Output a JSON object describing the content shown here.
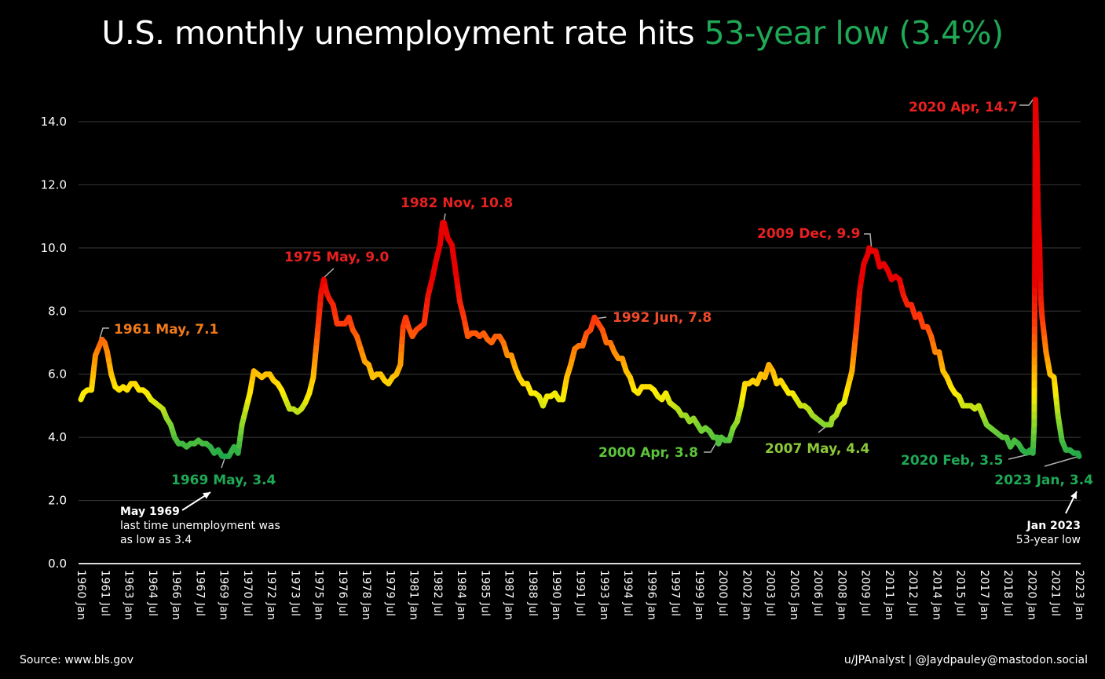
{
  "title": {
    "prefix": "U.S. monthly unemployment rate hits ",
    "highlight": "53-year low (3.4%)",
    "highlight_color": "#1fa855"
  },
  "footer": {
    "source": "Source: www.bls.gov",
    "credit": "u/JPAnalyst | @Jaydpauley@mastodon.social"
  },
  "notes": [
    {
      "heading": "May 1969",
      "lines": [
        "last time unemployment was",
        "as low as 3.4"
      ]
    },
    {
      "heading": "Jan 2023",
      "lines": [
        "53-year low"
      ]
    }
  ],
  "chart_data": {
    "type": "line",
    "title": "U.S. monthly unemployment rate hits 53-year low (3.4%)",
    "xlabel": "",
    "ylabel": "",
    "ylim": [
      0,
      14
    ],
    "grid": true,
    "y_ticks": [
      "0.0",
      "2.0",
      "4.0",
      "6.0",
      "8.0",
      "10.0",
      "12.0",
      "14.0"
    ],
    "x_tick_labels": [
      "1960 Jan",
      "1961 Jul",
      "1963 Jan",
      "1964 Jul",
      "1966 Jan",
      "1967 Jul",
      "1969 Jan",
      "1970 Jul",
      "1972 Jan",
      "1973 Jul",
      "1975 Jan",
      "1976 Jul",
      "1978 Jan",
      "1979 Jul",
      "1981 Jan",
      "1982 Jul",
      "1984 Jan",
      "1985 Jul",
      "1987 Jan",
      "1988 Jul",
      "1990 Jan",
      "1991 Jul",
      "1993 Jan",
      "1994 Jul",
      "1996 Jan",
      "1997 Jul",
      "1999 Jan",
      "2000 Jul",
      "2002 Jan",
      "2003 Jul",
      "2005 Jan",
      "2006 Jul",
      "2008 Jan",
      "2009 Jul",
      "2011 Jan",
      "2012 Jul",
      "2014 Jan",
      "2015 Jul",
      "2017 Jan",
      "2018 Jul",
      "2020 Jan",
      "2021 Jul",
      "2023 Jan"
    ],
    "color_scale": {
      "low": "#1fa84a",
      "mid": "#ffee00",
      "high": "#e80000"
    },
    "series": [
      {
        "points": [
          [
            "1960-01",
            5.2
          ],
          [
            "1960-03",
            5.4
          ],
          [
            "1960-06",
            5.5
          ],
          [
            "1960-09",
            5.5
          ],
          [
            "1960-12",
            6.6
          ],
          [
            "1961-03",
            6.9
          ],
          [
            "1961-05",
            7.1
          ],
          [
            "1961-07",
            7.0
          ],
          [
            "1961-09",
            6.7
          ],
          [
            "1961-12",
            6.0
          ],
          [
            "1962-03",
            5.6
          ],
          [
            "1962-06",
            5.5
          ],
          [
            "1962-09",
            5.6
          ],
          [
            "1962-12",
            5.5
          ],
          [
            "1963-03",
            5.7
          ],
          [
            "1963-06",
            5.7
          ],
          [
            "1963-09",
            5.5
          ],
          [
            "1963-12",
            5.5
          ],
          [
            "1964-03",
            5.4
          ],
          [
            "1964-06",
            5.2
          ],
          [
            "1964-09",
            5.1
          ],
          [
            "1964-12",
            5.0
          ],
          [
            "1965-03",
            4.9
          ],
          [
            "1965-06",
            4.6
          ],
          [
            "1965-09",
            4.4
          ],
          [
            "1965-12",
            4.0
          ],
          [
            "1966-03",
            3.8
          ],
          [
            "1966-06",
            3.8
          ],
          [
            "1966-09",
            3.7
          ],
          [
            "1966-12",
            3.8
          ],
          [
            "1967-03",
            3.8
          ],
          [
            "1967-06",
            3.9
          ],
          [
            "1967-09",
            3.8
          ],
          [
            "1967-12",
            3.8
          ],
          [
            "1968-03",
            3.7
          ],
          [
            "1968-06",
            3.5
          ],
          [
            "1968-09",
            3.6
          ],
          [
            "1968-12",
            3.4
          ],
          [
            "1969-03",
            3.4
          ],
          [
            "1969-05",
            3.4
          ],
          [
            "1969-09",
            3.7
          ],
          [
            "1969-12",
            3.5
          ],
          [
            "1970-03",
            4.4
          ],
          [
            "1970-06",
            4.9
          ],
          [
            "1970-09",
            5.4
          ],
          [
            "1970-12",
            6.1
          ],
          [
            "1971-03",
            6.0
          ],
          [
            "1971-06",
            5.9
          ],
          [
            "1971-09",
            6.0
          ],
          [
            "1971-12",
            6.0
          ],
          [
            "1972-03",
            5.8
          ],
          [
            "1972-06",
            5.7
          ],
          [
            "1972-09",
            5.5
          ],
          [
            "1972-12",
            5.2
          ],
          [
            "1973-03",
            4.9
          ],
          [
            "1973-06",
            4.9
          ],
          [
            "1973-09",
            4.8
          ],
          [
            "1973-12",
            4.9
          ],
          [
            "1974-03",
            5.1
          ],
          [
            "1974-06",
            5.4
          ],
          [
            "1974-09",
            5.9
          ],
          [
            "1974-12",
            7.2
          ],
          [
            "1975-03",
            8.6
          ],
          [
            "1975-05",
            9.0
          ],
          [
            "1975-07",
            8.6
          ],
          [
            "1975-09",
            8.4
          ],
          [
            "1975-12",
            8.2
          ],
          [
            "1976-03",
            7.6
          ],
          [
            "1976-06",
            7.6
          ],
          [
            "1976-09",
            7.6
          ],
          [
            "1976-12",
            7.8
          ],
          [
            "1977-03",
            7.4
          ],
          [
            "1977-06",
            7.2
          ],
          [
            "1977-09",
            6.8
          ],
          [
            "1977-12",
            6.4
          ],
          [
            "1978-03",
            6.3
          ],
          [
            "1978-06",
            5.9
          ],
          [
            "1978-09",
            6.0
          ],
          [
            "1978-12",
            6.0
          ],
          [
            "1979-03",
            5.8
          ],
          [
            "1979-06",
            5.7
          ],
          [
            "1979-09",
            5.9
          ],
          [
            "1979-12",
            6.0
          ],
          [
            "1980-03",
            6.3
          ],
          [
            "1980-05",
            7.5
          ],
          [
            "1980-07",
            7.8
          ],
          [
            "1980-09",
            7.5
          ],
          [
            "1980-12",
            7.2
          ],
          [
            "1981-03",
            7.4
          ],
          [
            "1981-06",
            7.5
          ],
          [
            "1981-09",
            7.6
          ],
          [
            "1981-12",
            8.5
          ],
          [
            "1982-03",
            9.0
          ],
          [
            "1982-06",
            9.6
          ],
          [
            "1982-09",
            10.1
          ],
          [
            "1982-11",
            10.8
          ],
          [
            "1982-12",
            10.8
          ],
          [
            "1983-03",
            10.3
          ],
          [
            "1983-06",
            10.1
          ],
          [
            "1983-09",
            9.2
          ],
          [
            "1983-12",
            8.3
          ],
          [
            "1984-03",
            7.8
          ],
          [
            "1984-06",
            7.2
          ],
          [
            "1984-09",
            7.3
          ],
          [
            "1984-12",
            7.3
          ],
          [
            "1985-03",
            7.2
          ],
          [
            "1985-06",
            7.3
          ],
          [
            "1985-09",
            7.1
          ],
          [
            "1985-12",
            7.0
          ],
          [
            "1986-03",
            7.2
          ],
          [
            "1986-06",
            7.2
          ],
          [
            "1986-09",
            7.0
          ],
          [
            "1986-12",
            6.6
          ],
          [
            "1987-03",
            6.6
          ],
          [
            "1987-06",
            6.2
          ],
          [
            "1987-09",
            5.9
          ],
          [
            "1987-12",
            5.7
          ],
          [
            "1988-03",
            5.7
          ],
          [
            "1988-06",
            5.4
          ],
          [
            "1988-09",
            5.4
          ],
          [
            "1988-12",
            5.3
          ],
          [
            "1989-03",
            5.0
          ],
          [
            "1989-06",
            5.3
          ],
          [
            "1989-09",
            5.3
          ],
          [
            "1989-12",
            5.4
          ],
          [
            "1990-03",
            5.2
          ],
          [
            "1990-06",
            5.2
          ],
          [
            "1990-09",
            5.9
          ],
          [
            "1990-12",
            6.3
          ],
          [
            "1991-03",
            6.8
          ],
          [
            "1991-06",
            6.9
          ],
          [
            "1991-09",
            6.9
          ],
          [
            "1991-12",
            7.3
          ],
          [
            "1992-03",
            7.4
          ],
          [
            "1992-06",
            7.8
          ],
          [
            "1992-09",
            7.6
          ],
          [
            "1992-12",
            7.4
          ],
          [
            "1993-03",
            7.0
          ],
          [
            "1993-06",
            7.0
          ],
          [
            "1993-09",
            6.7
          ],
          [
            "1993-12",
            6.5
          ],
          [
            "1994-03",
            6.5
          ],
          [
            "1994-06",
            6.1
          ],
          [
            "1994-09",
            5.9
          ],
          [
            "1994-12",
            5.5
          ],
          [
            "1995-03",
            5.4
          ],
          [
            "1995-06",
            5.6
          ],
          [
            "1995-09",
            5.6
          ],
          [
            "1995-12",
            5.6
          ],
          [
            "1996-03",
            5.5
          ],
          [
            "1996-06",
            5.3
          ],
          [
            "1996-09",
            5.2
          ],
          [
            "1996-12",
            5.4
          ],
          [
            "1997-03",
            5.1
          ],
          [
            "1997-06",
            5.0
          ],
          [
            "1997-09",
            4.9
          ],
          [
            "1997-12",
            4.7
          ],
          [
            "1998-03",
            4.7
          ],
          [
            "1998-06",
            4.5
          ],
          [
            "1998-09",
            4.6
          ],
          [
            "1998-12",
            4.4
          ],
          [
            "1999-03",
            4.2
          ],
          [
            "1999-06",
            4.3
          ],
          [
            "1999-09",
            4.2
          ],
          [
            "1999-12",
            4.0
          ],
          [
            "2000-03",
            4.0
          ],
          [
            "2000-04",
            3.8
          ],
          [
            "2000-06",
            4.0
          ],
          [
            "2000-09",
            3.9
          ],
          [
            "2000-12",
            3.9
          ],
          [
            "2001-03",
            4.3
          ],
          [
            "2001-06",
            4.5
          ],
          [
            "2001-09",
            5.0
          ],
          [
            "2001-12",
            5.7
          ],
          [
            "2002-03",
            5.7
          ],
          [
            "2002-06",
            5.8
          ],
          [
            "2002-09",
            5.7
          ],
          [
            "2002-12",
            6.0
          ],
          [
            "2003-03",
            5.9
          ],
          [
            "2003-06",
            6.3
          ],
          [
            "2003-09",
            6.1
          ],
          [
            "2003-12",
            5.7
          ],
          [
            "2004-03",
            5.8
          ],
          [
            "2004-06",
            5.6
          ],
          [
            "2004-09",
            5.4
          ],
          [
            "2004-12",
            5.4
          ],
          [
            "2005-03",
            5.2
          ],
          [
            "2005-06",
            5.0
          ],
          [
            "2005-09",
            5.0
          ],
          [
            "2005-12",
            4.9
          ],
          [
            "2006-03",
            4.7
          ],
          [
            "2006-06",
            4.6
          ],
          [
            "2006-09",
            4.5
          ],
          [
            "2006-12",
            4.4
          ],
          [
            "2007-03",
            4.4
          ],
          [
            "2007-05",
            4.4
          ],
          [
            "2007-06",
            4.6
          ],
          [
            "2007-09",
            4.7
          ],
          [
            "2007-12",
            5.0
          ],
          [
            "2008-03",
            5.1
          ],
          [
            "2008-06",
            5.6
          ],
          [
            "2008-09",
            6.1
          ],
          [
            "2008-12",
            7.3
          ],
          [
            "2009-03",
            8.7
          ],
          [
            "2009-06",
            9.5
          ],
          [
            "2009-09",
            9.8
          ],
          [
            "2009-10",
            10.0
          ],
          [
            "2009-12",
            9.9
          ],
          [
            "2010-03",
            9.9
          ],
          [
            "2010-06",
            9.4
          ],
          [
            "2010-09",
            9.5
          ],
          [
            "2010-12",
            9.3
          ],
          [
            "2011-03",
            9.0
          ],
          [
            "2011-06",
            9.1
          ],
          [
            "2011-09",
            9.0
          ],
          [
            "2011-12",
            8.5
          ],
          [
            "2012-03",
            8.2
          ],
          [
            "2012-06",
            8.2
          ],
          [
            "2012-09",
            7.8
          ],
          [
            "2012-12",
            7.9
          ],
          [
            "2013-03",
            7.5
          ],
          [
            "2013-06",
            7.5
          ],
          [
            "2013-09",
            7.2
          ],
          [
            "2013-12",
            6.7
          ],
          [
            "2014-03",
            6.7
          ],
          [
            "2014-06",
            6.1
          ],
          [
            "2014-09",
            5.9
          ],
          [
            "2014-12",
            5.6
          ],
          [
            "2015-03",
            5.4
          ],
          [
            "2015-06",
            5.3
          ],
          [
            "2015-09",
            5.0
          ],
          [
            "2015-12",
            5.0
          ],
          [
            "2016-03",
            5.0
          ],
          [
            "2016-06",
            4.9
          ],
          [
            "2016-09",
            5.0
          ],
          [
            "2016-12",
            4.7
          ],
          [
            "2017-03",
            4.4
          ],
          [
            "2017-06",
            4.3
          ],
          [
            "2017-09",
            4.2
          ],
          [
            "2017-12",
            4.1
          ],
          [
            "2018-03",
            4.0
          ],
          [
            "2018-06",
            4.0
          ],
          [
            "2018-09",
            3.7
          ],
          [
            "2018-12",
            3.9
          ],
          [
            "2019-03",
            3.8
          ],
          [
            "2019-06",
            3.6
          ],
          [
            "2019-09",
            3.5
          ],
          [
            "2019-12",
            3.6
          ],
          [
            "2020-02",
            3.5
          ],
          [
            "2020-03",
            4.4
          ],
          [
            "2020-04",
            14.7
          ],
          [
            "2020-05",
            13.2
          ],
          [
            "2020-06",
            11.0
          ],
          [
            "2020-07",
            10.2
          ],
          [
            "2020-08",
            8.4
          ],
          [
            "2020-09",
            7.8
          ],
          [
            "2020-12",
            6.7
          ],
          [
            "2021-03",
            6.0
          ],
          [
            "2021-06",
            5.9
          ],
          [
            "2021-09",
            4.7
          ],
          [
            "2021-12",
            3.9
          ],
          [
            "2022-03",
            3.6
          ],
          [
            "2022-06",
            3.6
          ],
          [
            "2022-09",
            3.5
          ],
          [
            "2022-12",
            3.5
          ],
          [
            "2023-01",
            3.4
          ]
        ]
      }
    ],
    "annotations": [
      {
        "text": "1961 May, 7.1",
        "color": "#f07a1a"
      },
      {
        "text": "1969 May, 3.4",
        "color": "#1fa855"
      },
      {
        "text": "1975 May, 9.0",
        "color": "#e82020"
      },
      {
        "text": "1982 Nov, 10.8",
        "color": "#e82020"
      },
      {
        "text": "1992 Jun, 7.8",
        "color": "#f04a2a"
      },
      {
        "text": "2000 Apr, 3.8",
        "color": "#5cc43a"
      },
      {
        "text": "2007 May, 4.4",
        "color": "#8cc83a"
      },
      {
        "text": "2009 Dec, 9.9",
        "color": "#e82020"
      },
      {
        "text": "2020 Apr, 14.7",
        "color": "#e82020"
      },
      {
        "text": "2020 Feb, 3.5",
        "color": "#1fa855"
      },
      {
        "text": "2023 Jan, 3.4",
        "color": "#1fa855"
      }
    ]
  }
}
